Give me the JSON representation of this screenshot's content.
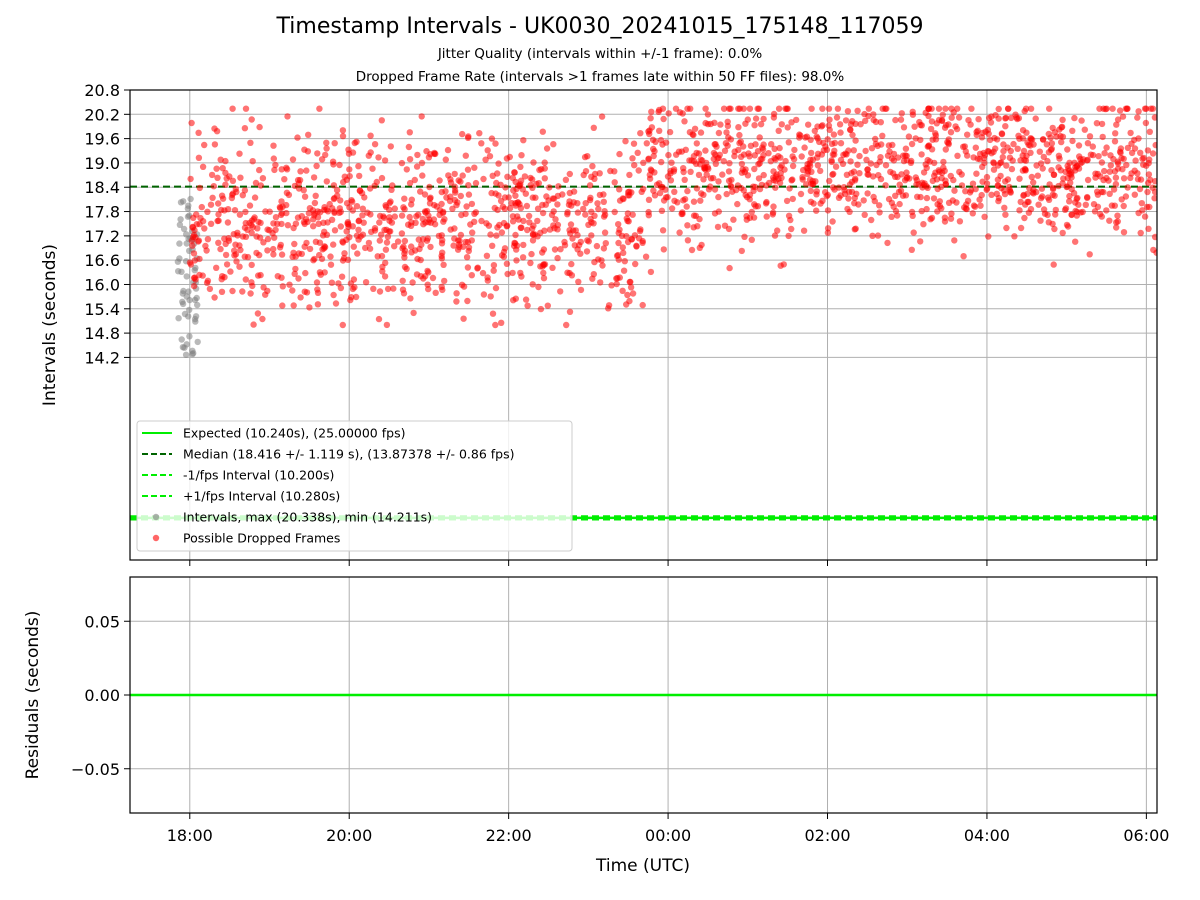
{
  "chart_data": [
    {
      "type": "scatter",
      "title": "Timestamp Intervals - UK0030_20241015_175148_117059",
      "subtitle_1": "Jitter Quality (intervals within +/-1 frame): 0.0%",
      "subtitle_2": "Dropped Frame Rate (intervals >1 frames late within 50 FF files): 98.0%",
      "xlabel": "",
      "ylabel": "Intervals (seconds)",
      "x_range": [
        "17:15",
        "06:08"
      ],
      "ylim": [
        9.2,
        20.8
      ],
      "y_ticks": [
        "14.2",
        "14.8",
        "15.4",
        "16.0",
        "16.6",
        "17.2",
        "17.8",
        "18.4",
        "19.0",
        "19.6",
        "20.2",
        "20.8"
      ],
      "x_ticks": [
        "18:00",
        "20:00",
        "22:00",
        "00:00",
        "02:00",
        "04:00",
        "06:00"
      ],
      "grid": true,
      "legend_placement": "lower-left",
      "lines": {
        "expected": 10.24,
        "median": 18.416,
        "minus_1fps": 10.2,
        "plus_1fps": 10.28
      },
      "series": [
        {
          "name": "Intervals, max (20.338s), min (14.211s)",
          "color": "#808080",
          "x_range": [
            "17:51",
            "18:06"
          ],
          "y_range": [
            14.211,
            18.2
          ]
        },
        {
          "name": "Possible Dropped Frames",
          "color": "#ff0000",
          "x_range": [
            "18:00",
            "06:08"
          ],
          "y_range": [
            15.0,
            20.338
          ],
          "band_early": {
            "x_range": [
              "18:00",
              "23:45"
            ],
            "center": 17.6,
            "spread": 1.1
          },
          "band_late": {
            "x_range": [
              "23:45",
              "06:08"
            ],
            "center": 18.9,
            "spread": 0.9
          }
        }
      ],
      "legend": [
        {
          "label": "Expected (10.240s), (25.00000 fps)",
          "style": "solid",
          "color": "#00ee00"
        },
        {
          "label": "Median (18.416 +/- 1.119 s), (13.87378 +/- 0.86 fps)",
          "style": "dashed",
          "color": "#006400"
        },
        {
          "label": "-1/fps Interval (10.200s)",
          "style": "dashed",
          "color": "#00ee00"
        },
        {
          "label": "+1/fps Interval (10.280s)",
          "style": "dashed",
          "color": "#00ee00"
        },
        {
          "label": "Intervals, max (20.338s), min (14.211s)",
          "style": "marker",
          "color": "#808080"
        },
        {
          "label": "Possible Dropped Frames",
          "style": "marker",
          "color": "#ff0000"
        }
      ]
    },
    {
      "type": "line",
      "xlabel": "Time (UTC)",
      "ylabel": "Residuals (seconds)",
      "ylim": [
        -0.08,
        0.08
      ],
      "y_ticks": [
        "0.05",
        "0.00",
        "−0.05"
      ],
      "x_ticks": [
        "18:00",
        "20:00",
        "22:00",
        "00:00",
        "02:00",
        "04:00",
        "06:00"
      ],
      "grid": true,
      "series": [
        {
          "values": [
            0.0,
            0.0
          ],
          "color": "#00ee00"
        }
      ]
    }
  ]
}
